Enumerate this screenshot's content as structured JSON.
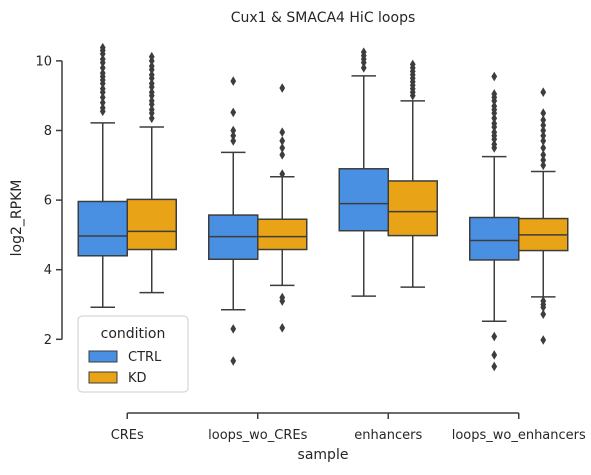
{
  "chart_data": {
    "type": "box",
    "title": "Cux1 & SMACA4 HiC loops",
    "xlabel": "sample",
    "ylabel": "log2_RPKM",
    "categories": [
      "CREs",
      "loops_wo_CREs",
      "enhancers",
      "loops_wo_enhancers"
    ],
    "ylim": [
      0.4,
      10.6
    ],
    "yticks": [
      2,
      4,
      6,
      8,
      10
    ],
    "grid": false,
    "legend": {
      "title": "condition",
      "placement": "lower-left"
    },
    "series": [
      {
        "name": "CTRL",
        "color": "#4a90e2",
        "boxes": [
          {
            "whislo": 2.92,
            "q1": 4.4,
            "med": 4.97,
            "q3": 5.96,
            "whishi": 8.22,
            "fliers": [
              8.55,
              8.65,
              8.8,
              8.95,
              9.1,
              9.2,
              9.35,
              9.45,
              9.55,
              9.65,
              9.8,
              9.95,
              10.05,
              10.2,
              10.3,
              10.38
            ]
          },
          {
            "whislo": 2.85,
            "q1": 4.3,
            "med": 4.95,
            "q3": 5.57,
            "whishi": 7.37,
            "fliers": [
              1.38,
              2.3,
              7.7,
              7.85,
              8.0,
              8.52,
              9.42
            ]
          },
          {
            "whislo": 3.24,
            "q1": 5.12,
            "med": 5.9,
            "q3": 6.9,
            "whishi": 9.57,
            "fliers": [
              9.8,
              9.95,
              10.05,
              10.15,
              10.25
            ]
          },
          {
            "whislo": 2.52,
            "q1": 4.28,
            "med": 4.84,
            "q3": 5.5,
            "whishi": 7.25,
            "fliers": [
              1.22,
              1.55,
              2.08,
              7.5,
              7.6,
              7.75,
              7.85,
              7.95,
              8.1,
              8.2,
              8.35,
              8.5,
              8.6,
              8.7,
              8.85,
              8.95,
              9.05,
              9.55
            ]
          }
        ]
      },
      {
        "name": "KD",
        "color": "#e8a317",
        "boxes": [
          {
            "whislo": 3.34,
            "q1": 4.58,
            "med": 5.1,
            "q3": 6.02,
            "whishi": 8.1,
            "fliers": [
              8.35,
              8.5,
              8.6,
              8.75,
              8.85,
              9.0,
              9.1,
              9.25,
              9.35,
              9.5,
              9.6,
              9.75,
              9.85,
              10.0,
              10.12
            ]
          },
          {
            "whislo": 3.55,
            "q1": 4.58,
            "med": 4.95,
            "q3": 5.45,
            "whishi": 6.67,
            "fliers": [
              2.33,
              3.1,
              3.2,
              6.75,
              7.3,
              7.5,
              7.7,
              7.95,
              9.22
            ]
          },
          {
            "whislo": 3.5,
            "q1": 4.98,
            "med": 5.67,
            "q3": 6.55,
            "whishi": 8.85,
            "fliers": [
              9.0,
              9.1,
              9.2,
              9.3,
              9.4,
              9.5,
              9.6,
              9.7,
              9.8,
              9.9
            ]
          },
          {
            "whislo": 3.22,
            "q1": 4.55,
            "med": 5.0,
            "q3": 5.47,
            "whishi": 6.82,
            "fliers": [
              1.98,
              2.72,
              2.92,
              3.0,
              3.1,
              7.0,
              7.15,
              7.3,
              7.5,
              7.7,
              7.85,
              8.0,
              8.15,
              8.3,
              8.5,
              9.1
            ]
          }
        ]
      }
    ]
  }
}
